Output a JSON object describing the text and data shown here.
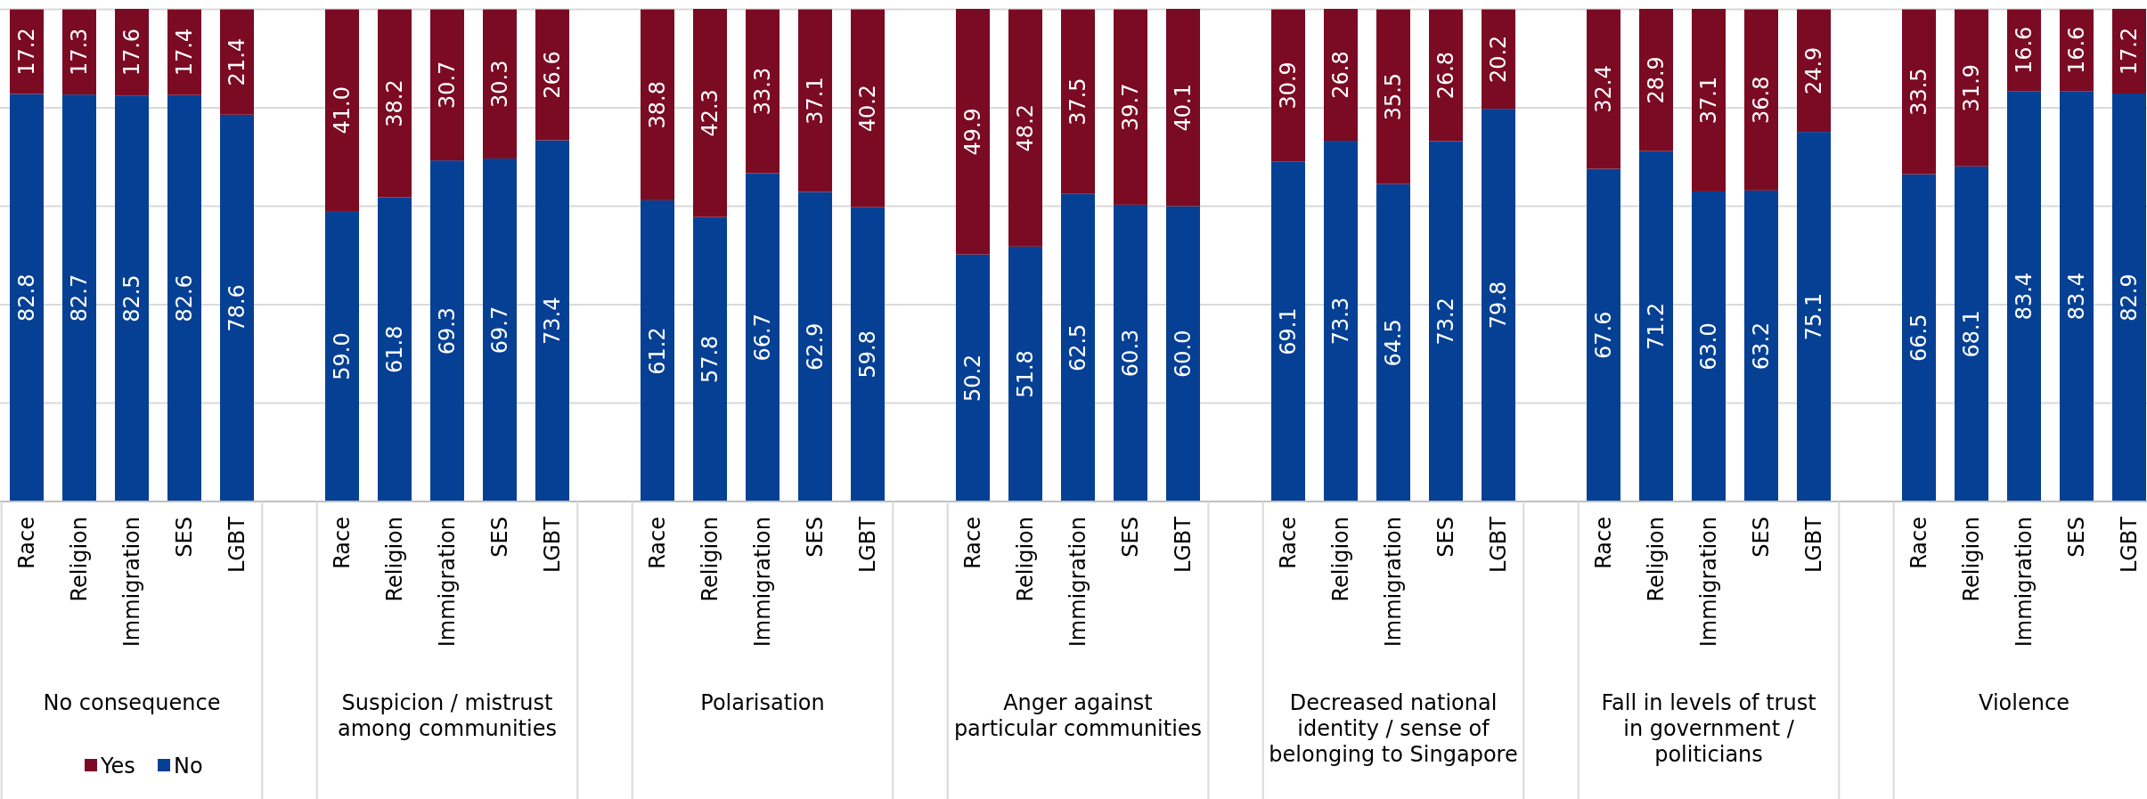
{
  "chart_data": {
    "type": "bar",
    "stacked": true,
    "categories": [
      "Race",
      "Religion",
      "Immigration",
      "SES",
      "LGBT",
      "Race",
      "Religion",
      "Immigration",
      "SES",
      "LGBT",
      "Race",
      "Religion",
      "Immigration",
      "SES",
      "LGBT",
      "Race",
      "Religion",
      "Immigration",
      "SES",
      "LGBT",
      "Race",
      "Religion",
      "Immigration",
      "SES",
      "LGBT",
      "Race",
      "Religion",
      "Immigration",
      "SES",
      "LGBT",
      "Race",
      "Religion",
      "Immigration",
      "SES",
      "LGBT"
    ],
    "series": [
      {
        "name": "No",
        "color": "#054094",
        "values": [
          82.8,
          82.7,
          82.5,
          82.6,
          78.6,
          59.0,
          61.8,
          69.3,
          69.7,
          73.4,
          61.2,
          57.8,
          66.7,
          62.9,
          59.8,
          50.2,
          51.8,
          62.5,
          60.3,
          60.0,
          69.1,
          73.3,
          64.5,
          73.2,
          79.8,
          67.6,
          71.2,
          63.0,
          63.2,
          75.1,
          66.5,
          68.1,
          83.4,
          83.4,
          82.9
        ],
        "value_labels": [
          "82.8",
          "82.7",
          "82.5",
          "82.6",
          "78.6",
          "59.0",
          "61.8",
          "69.3",
          "69.7",
          "73.4",
          "61.2",
          "57.8",
          "66.7",
          "62.9",
          "59.8",
          "50.2",
          "51.8",
          "62.5",
          "60.3",
          "60.0",
          "69.1",
          "73.3",
          "64.5",
          "73.2",
          "79.8",
          "67.6",
          "71.2",
          "63.0",
          "63.2",
          "75.1",
          "66.5",
          "68.1",
          "83.4",
          "83.4",
          "82.9"
        ]
      },
      {
        "name": "Yes",
        "color": "#7b0a23",
        "values": [
          17.2,
          17.3,
          17.6,
          17.4,
          21.4,
          41.0,
          38.2,
          30.7,
          30.3,
          26.6,
          38.8,
          42.3,
          33.3,
          37.1,
          40.2,
          49.9,
          48.2,
          37.5,
          39.7,
          40.1,
          30.9,
          26.8,
          35.5,
          26.8,
          20.2,
          32.4,
          28.9,
          37.1,
          36.8,
          24.9,
          33.5,
          31.9,
          16.6,
          16.6,
          17.2
        ],
        "value_labels": [
          "17.2",
          "17.3",
          "17.6",
          "17.4",
          "21.4",
          "41.0",
          "38.2",
          "30.7",
          "30.3",
          "26.6",
          "38.8",
          "42.3",
          "33.3",
          "37.1",
          "40.2",
          "49.9",
          "48.2",
          "37.5",
          "39.7",
          "40.1",
          "30.9",
          "26.8",
          "35.5",
          "26.8",
          "20.2",
          "32.4",
          "28.9",
          "37.1",
          "36.8",
          "24.9",
          "33.5",
          "31.9",
          "16.6",
          "16.6",
          "17.2"
        ]
      }
    ],
    "tick_labels": "x",
    "grid": "y",
    "legend": "bottom left",
    "annotations": [
      "No consequence",
      "Suspicion / mistrust among communities",
      "Polarisation",
      "Anger against particular communities",
      "Decreased national identity / sense of belonging to Singapore",
      "Fall in levels of trust in government / politicians",
      "Violence"
    ]
  }
}
